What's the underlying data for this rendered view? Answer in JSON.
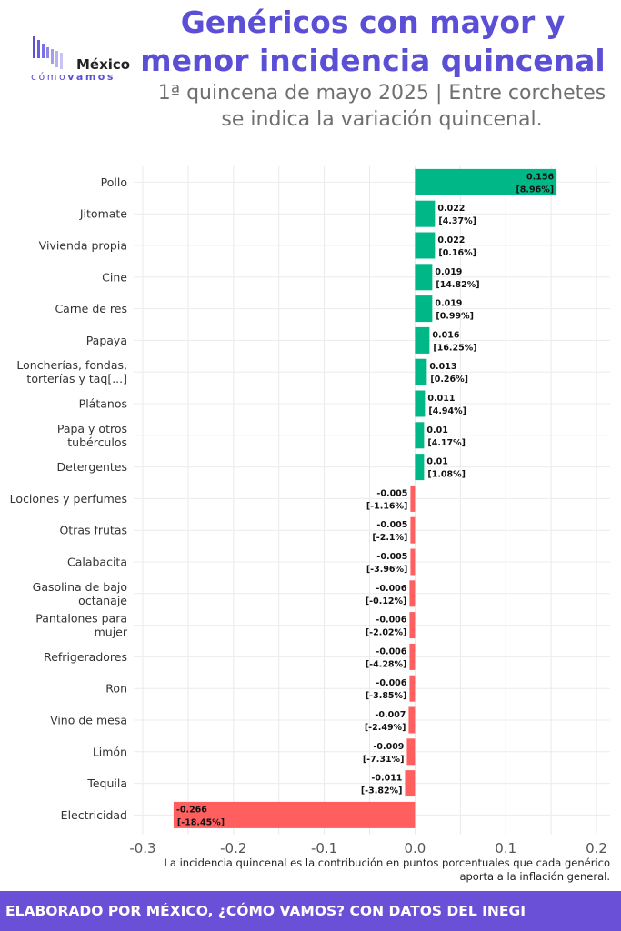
{
  "header": {
    "title": "Genéricos con mayor y menor incidencia quincenal",
    "subtitle": "1ª quincena de mayo 2025 | Entre corchetes se indica la variación quincenal."
  },
  "logo": {
    "word": "México",
    "sub_prefix": "cómo",
    "sub_bold": "vamos"
  },
  "note": "La incidencia quincenal es la contribución en puntos porcentuales que cada genérico aporta a la inflación general.",
  "footer": {
    "text": "ELABORADO POR MÉXICO, ¿CÓMO VAMOS? CON DATOS DEL INEGI"
  },
  "colors": {
    "positive": "#00b887",
    "negative": "#ff5f5f",
    "accent": "#5b4fd6"
  },
  "chart_data": {
    "type": "bar",
    "orientation": "horizontal",
    "categories": [
      "Pollo",
      "Jitomate",
      "Vivienda propia",
      "Cine",
      "Carne de res",
      "Papaya",
      "Loncherías, fondas, torterías y taq[...]",
      "Plátanos",
      "Papa y otros tubérculos",
      "Detergentes",
      "Lociones y perfumes",
      "Otras frutas",
      "Calabacita",
      "Gasolina de bajo octanaje",
      "Pantalones para mujer",
      "Refrigeradores",
      "Ron",
      "Vino de mesa",
      "Limón",
      "Tequila",
      "Electricidad"
    ],
    "category_lines": [
      [
        "Pollo"
      ],
      [
        "Jitomate"
      ],
      [
        "Vivienda propia"
      ],
      [
        "Cine"
      ],
      [
        "Carne de res"
      ],
      [
        "Papaya"
      ],
      [
        "Loncherías, fondas,",
        "torterías y taq[...]"
      ],
      [
        "Plátanos"
      ],
      [
        "Papa y otros",
        "tubérculos"
      ],
      [
        "Detergentes"
      ],
      [
        "Lociones y perfumes"
      ],
      [
        "Otras frutas"
      ],
      [
        "Calabacita"
      ],
      [
        "Gasolina de bajo",
        "octanaje"
      ],
      [
        "Pantalones para",
        "mujer"
      ],
      [
        "Refrigeradores"
      ],
      [
        "Ron"
      ],
      [
        "Vino de mesa"
      ],
      [
        "Limón"
      ],
      [
        "Tequila"
      ],
      [
        "Electricidad"
      ]
    ],
    "values": [
      0.156,
      0.022,
      0.022,
      0.019,
      0.019,
      0.016,
      0.013,
      0.011,
      0.01,
      0.01,
      -0.005,
      -0.005,
      -0.005,
      -0.006,
      -0.006,
      -0.006,
      -0.006,
      -0.007,
      -0.009,
      -0.011,
      -0.266
    ],
    "value_labels": [
      "0.156",
      "0.022",
      "0.022",
      "0.019",
      "0.019",
      "0.016",
      "0.013",
      "0.011",
      "0.01",
      "0.01",
      "-0.005",
      "-0.005",
      "-0.005",
      "-0.006",
      "-0.006",
      "-0.006",
      "-0.006",
      "-0.007",
      "-0.009",
      "-0.011",
      "-0.266"
    ],
    "variation_labels": [
      "[8.96%]",
      "[4.37%]",
      "[0.16%]",
      "[14.82%]",
      "[0.99%]",
      "[16.25%]",
      "[0.26%]",
      "[4.94%]",
      "[4.17%]",
      "[1.08%]",
      "[-1.16%]",
      "[-2.1%]",
      "[-3.96%]",
      "[-0.12%]",
      "[-2.02%]",
      "[-4.28%]",
      "[-3.85%]",
      "[-2.49%]",
      "[-7.31%]",
      "[-3.82%]",
      "[-18.45%]"
    ],
    "xlim": [
      -0.31,
      0.215
    ],
    "x_ticks": [
      -0.3,
      -0.2,
      -0.1,
      0.0,
      0.1,
      0.2
    ],
    "x_tick_labels": [
      "-0.3",
      "-0.2",
      "-0.1",
      "0.0",
      "0.1",
      "0.2"
    ],
    "grid": true,
    "legend": "none"
  }
}
